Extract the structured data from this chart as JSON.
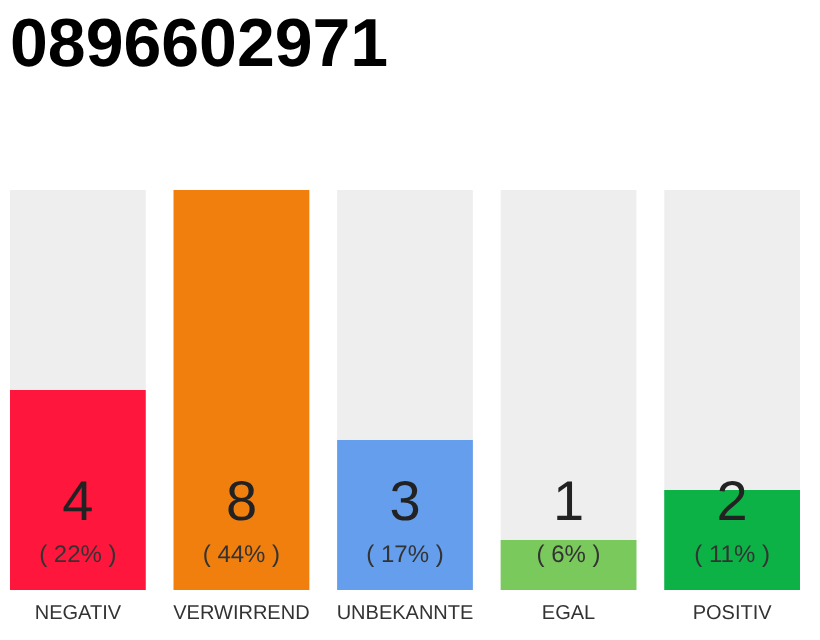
{
  "chart_data": {
    "type": "bar",
    "title": "0896602971",
    "categories": [
      "NEGATIV",
      "VERWIRREND",
      "UNBEKANNTE",
      "EGAL",
      "POSITIV"
    ],
    "values": [
      4,
      8,
      3,
      1,
      2
    ],
    "colors": [
      "#ff163c",
      "#f07f0e",
      "#659eec",
      "#7ac95c",
      "#0cb246"
    ],
    "ylim": [
      0,
      8
    ],
    "data_labels": true,
    "tick_labels": "x",
    "annotations": [
      "( 22% )",
      "( 44% )",
      "( 17% )",
      "( 6% )",
      "( 11% )"
    ]
  }
}
